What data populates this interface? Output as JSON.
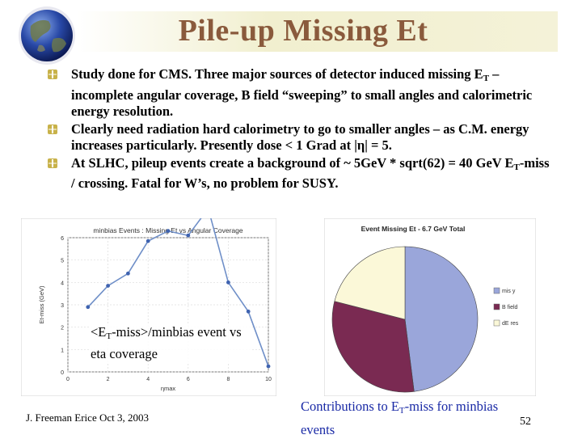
{
  "slide": {
    "title": "Pile-up Missing Et",
    "bullets": [
      {
        "text_html": "Study done for CMS. Three major sources of detector induced  missing E<sub>T</sub> – incomplete angular coverage, B field “sweeping” to small angles and calorimetric energy resolution."
      },
      {
        "text_html": "Clearly need radiation hard calorimetry to go to smaller angles – as C.M. energy increases particularly. Presently dose &lt; 1 Grad at |η| = 5."
      },
      {
        "text_html": "At SLHC, pileup events create a background of ~ 5GeV * sqrt(62) = 40 GeV E<sub>T</sub>-miss / crossing. Fatal for W’s, no problem for SUSY."
      }
    ],
    "caption_left_html": "&lt;E<sub>T</sub>-miss&gt;/minbias event vs eta coverage",
    "caption_right_html": "Contributions to E<sub>T</sub>-miss for minbias events",
    "footer": "J. Freeman   Erice  Oct 3, 2003",
    "page_number": "52",
    "colors": {
      "title": "#8a5a3c",
      "caption_right": "#1a2aa6",
      "bullet_marker": "#c8b24a"
    }
  },
  "chart_data": [
    {
      "type": "line",
      "title": "minbias Events : Missing Et vs Angular Coverage",
      "xlabel": "ηmax",
      "ylabel": "Et-miss (GeV)",
      "xlim": [
        0,
        10
      ],
      "ylim": [
        0,
        6
      ],
      "xticks": [
        "0",
        "2",
        "4",
        "6",
        "8",
        "10"
      ],
      "yticks": [
        "0",
        "1",
        "2",
        "3",
        "4",
        "5",
        "6"
      ],
      "x": [
        1,
        2,
        3,
        4,
        5,
        6,
        7,
        8,
        9,
        10
      ],
      "y": [
        2.9,
        3.85,
        4.4,
        5.85,
        6.3,
        6.1,
        7.3,
        4.0,
        2.7,
        0.25
      ],
      "grid": true,
      "line_color": "#6f8fc8"
    },
    {
      "type": "pie",
      "title": "Event Missing Et - 6.7 GeV Total",
      "labels": [
        "mis y",
        "B field",
        "dE res"
      ],
      "values": [
        48,
        31,
        21
      ],
      "colors": [
        "#9aa6da",
        "#7a2a52",
        "#fbf8d8"
      ],
      "legend": "right"
    }
  ]
}
